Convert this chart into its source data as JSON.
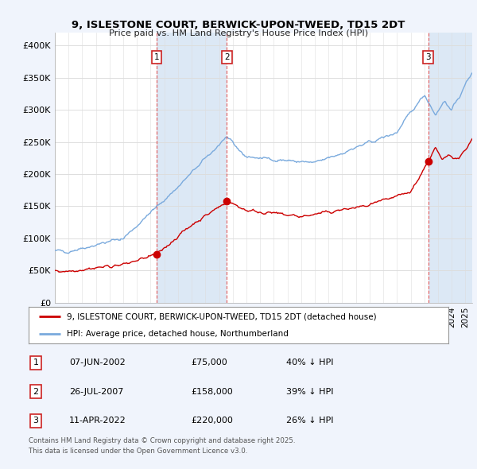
{
  "title1": "9, ISLESTONE COURT, BERWICK-UPON-TWEED, TD15 2DT",
  "title2": "Price paid vs. HM Land Registry's House Price Index (HPI)",
  "xlim_start": 1995.0,
  "xlim_end": 2025.5,
  "ylim_min": 0,
  "ylim_max": 420000,
  "sale_dates": [
    2002.44,
    2007.57,
    2022.28
  ],
  "sale_prices": [
    75000,
    158000,
    220000
  ],
  "sale_labels": [
    "1",
    "2",
    "3"
  ],
  "legend_red": "9, ISLESTONE COURT, BERWICK-UPON-TWEED, TD15 2DT (detached house)",
  "legend_blue": "HPI: Average price, detached house, Northumberland",
  "table_data": [
    [
      "1",
      "07-JUN-2002",
      "£75,000",
      "40% ↓ HPI"
    ],
    [
      "2",
      "26-JUL-2007",
      "£158,000",
      "39% ↓ HPI"
    ],
    [
      "3",
      "11-APR-2022",
      "£220,000",
      "26% ↓ HPI"
    ]
  ],
  "footnote1": "Contains HM Land Registry data © Crown copyright and database right 2025.",
  "footnote2": "This data is licensed under the Open Government Licence v3.0.",
  "fig_bg": "#f0f4fc",
  "plot_bg": "#ffffff",
  "shade_color": "#dce8f5",
  "red_color": "#cc0000",
  "blue_color": "#7aaadd",
  "grid_color": "#dddddd"
}
